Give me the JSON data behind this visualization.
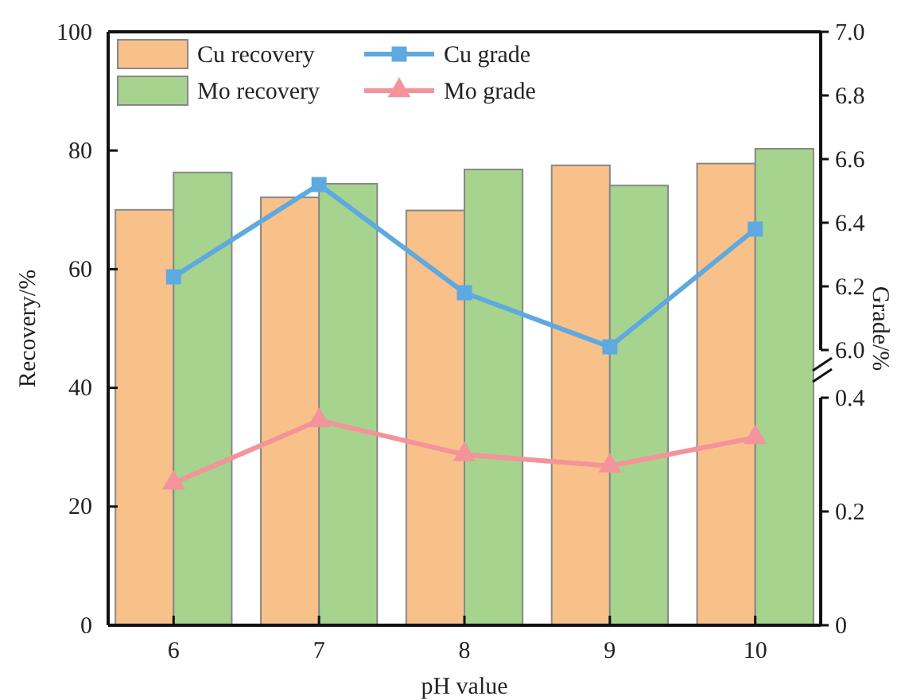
{
  "chart_data": {
    "type": "bar",
    "xlabel": "pH value",
    "ylabel": "Recovery/%",
    "y2label": "Grade/%",
    "categories": [
      "6",
      "7",
      "8",
      "9",
      "10"
    ],
    "series": [
      {
        "name": "Cu recovery",
        "color": "#f8c18a",
        "values": [
          70.0,
          72.1,
          69.9,
          77.5,
          77.8
        ]
      },
      {
        "name": "Mo recovery",
        "color": "#a6d38d",
        "values": [
          76.3,
          74.4,
          76.8,
          74.1,
          80.3
        ]
      },
      {
        "name": "Cu grade",
        "type": "line",
        "axis": "y3",
        "color": "#5ea9e0",
        "marker": "square",
        "values": [
          6.23,
          6.52,
          6.18,
          6.01,
          6.38
        ]
      },
      {
        "name": "Mo grade",
        "type": "line",
        "axis": "y2",
        "color": "#f4939a",
        "marker": "triangle",
        "values": [
          0.25,
          0.36,
          0.3,
          0.28,
          0.33
        ]
      }
    ],
    "ylim": [
      0,
      100
    ],
    "yticks": [
      0,
      20,
      40,
      60,
      80,
      100
    ],
    "y2lim": [
      0,
      0.4
    ],
    "y2ticks": [
      0,
      0.2,
      0.4
    ],
    "y3lim": [
      6.0,
      7.0
    ],
    "y3ticks": [
      {
        "value": 6.0,
        "label": "6.0"
      },
      {
        "value": 6.2,
        "label": "6.2"
      },
      {
        "value": 6.4,
        "label": "6.4"
      },
      {
        "value": 6.6,
        "label": "6.6"
      },
      {
        "value": 6.8,
        "label": "6.8"
      },
      {
        "value": 7.0,
        "label": "7.0"
      }
    ],
    "grid": false,
    "legend": "top left"
  }
}
